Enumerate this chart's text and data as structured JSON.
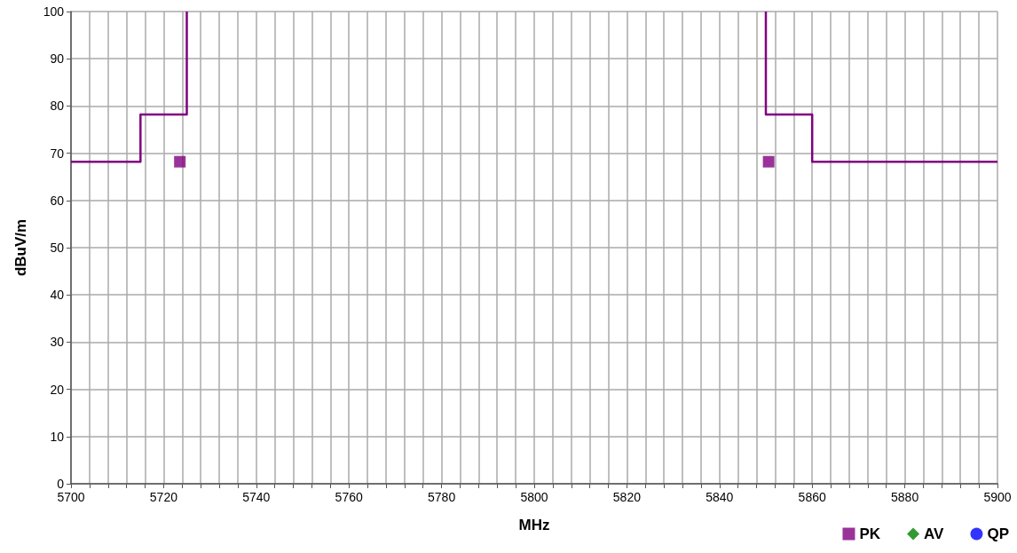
{
  "chart_data": {
    "type": "scatter",
    "xlabel": "MHz",
    "ylabel": "dBuV/m",
    "xlim": [
      5700,
      5900
    ],
    "xticks": [
      5700,
      {
        "value": 5704,
        "label": null
      },
      {
        "value": 5708,
        "label": null
      },
      {
        "value": 5712,
        "label": null
      },
      {
        "value": 5716,
        "label": null
      },
      5720,
      {
        "value": 5724,
        "label": null
      },
      {
        "value": 5728,
        "label": null
      },
      {
        "value": 5732,
        "label": null
      },
      {
        "value": 5736,
        "label": null
      },
      5740,
      {
        "value": 5744,
        "label": null
      },
      {
        "value": 5748,
        "label": null
      },
      {
        "value": 5752,
        "label": null
      },
      {
        "value": 5756,
        "label": null
      },
      5760,
      {
        "value": 5764,
        "label": null
      },
      {
        "value": 5768,
        "label": null
      },
      {
        "value": 5772,
        "label": null
      },
      {
        "value": 5776,
        "label": null
      },
      5780,
      {
        "value": 5784,
        "label": null
      },
      {
        "value": 5788,
        "label": null
      },
      {
        "value": 5792,
        "label": null
      },
      {
        "value": 5796,
        "label": null
      },
      5800,
      {
        "value": 5804,
        "label": null
      },
      {
        "value": 5808,
        "label": null
      },
      {
        "value": 5812,
        "label": null
      },
      {
        "value": 5816,
        "label": null
      },
      5820,
      {
        "value": 5824,
        "label": null
      },
      {
        "value": 5828,
        "label": null
      },
      {
        "value": 5832,
        "label": null
      },
      {
        "value": 5836,
        "label": null
      },
      5840,
      {
        "value": 5844,
        "label": null
      },
      {
        "value": 5848,
        "label": null
      },
      {
        "value": 5852,
        "label": null
      },
      {
        "value": 5856,
        "label": null
      },
      5860,
      {
        "value": 5864,
        "label": null
      },
      {
        "value": 5868,
        "label": null
      },
      {
        "value": 5872,
        "label": null
      },
      {
        "value": 5876,
        "label": null
      },
      5880,
      {
        "value": 5884,
        "label": null
      },
      {
        "value": 5888,
        "label": null
      },
      {
        "value": 5892,
        "label": null
      },
      {
        "value": 5896,
        "label": null
      },
      5900
    ],
    "ylim": [
      0,
      100
    ],
    "yticks": [
      0,
      10,
      20,
      30,
      40,
      50,
      60,
      70,
      80,
      90,
      100
    ],
    "grid": true,
    "legend": "bottom right",
    "series": [
      {
        "type": "line",
        "color": "#800080",
        "marker": "none",
        "line_style": "solid",
        "x": [
          5700,
          5715,
          5715,
          5725,
          5725,
          null,
          5850,
          5850,
          5860,
          5860,
          5900
        ],
        "values": [
          68.2,
          68.2,
          78.2,
          78.2,
          100,
          null,
          100,
          78.2,
          78.2,
          68.2,
          68.2
        ]
      },
      {
        "name": "PK",
        "color": "#800080",
        "marker": "square",
        "x": [
          5723.5,
          5850.6
        ],
        "values": [
          68.2,
          68.2
        ]
      },
      {
        "name": "AV",
        "color": "#008000",
        "marker": "diamond"
      },
      {
        "name": "QP",
        "color": "#0000ff",
        "marker": "circle"
      }
    ]
  }
}
